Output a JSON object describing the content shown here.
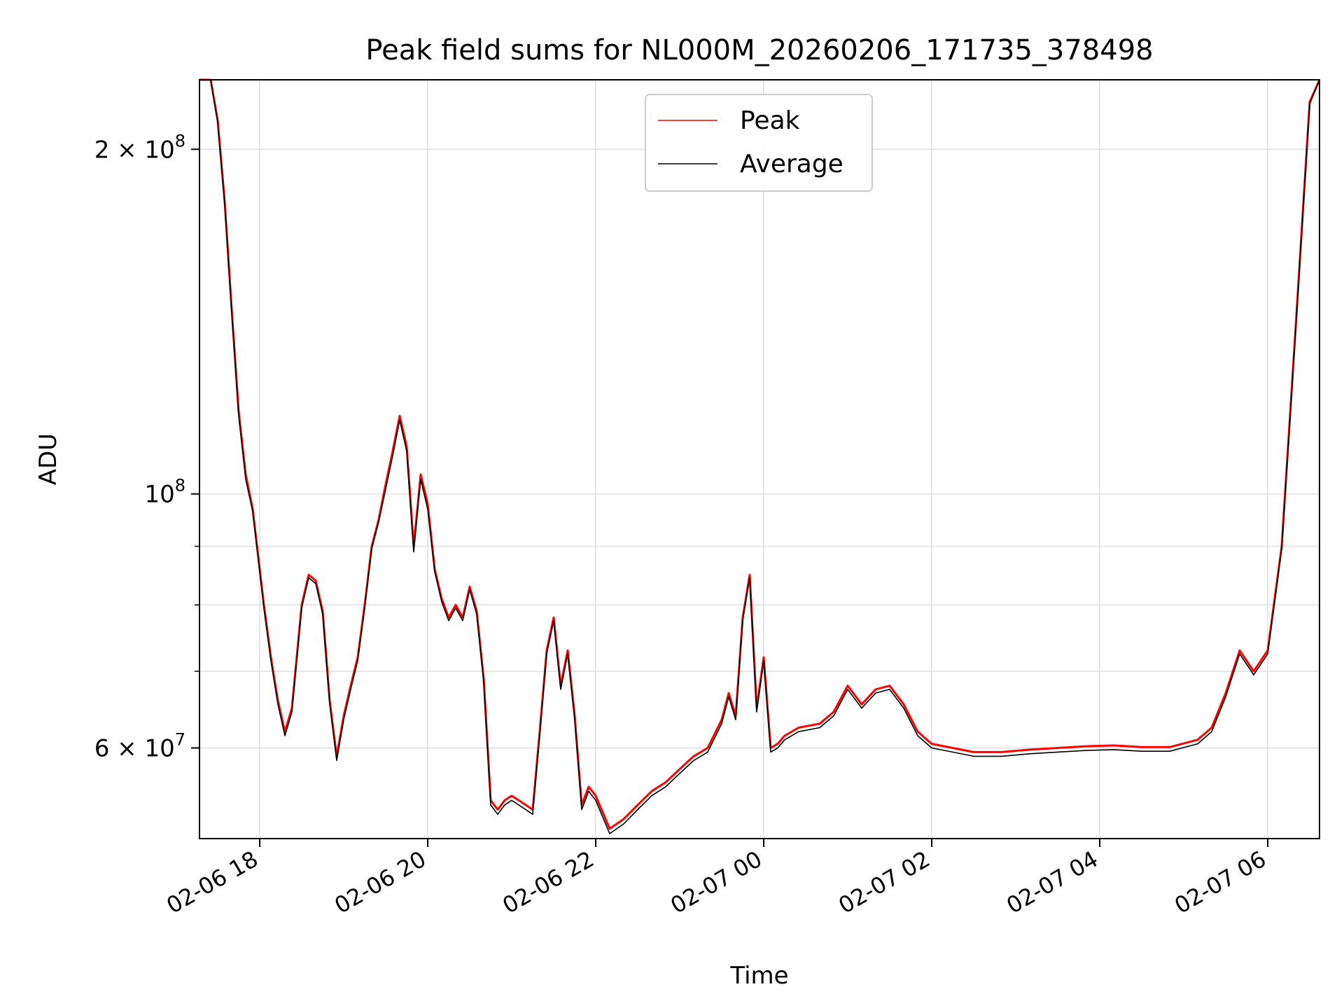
{
  "chart_data": {
    "type": "line",
    "title": "Peak field sums for NL000M_20260206_171735_378498",
    "xlabel": "Time",
    "ylabel": "ADU",
    "y_scale": "log",
    "ylim": [
      50000000,
      230000000
    ],
    "xlim": [
      "2026-02-06 17:17",
      "2026-02-07 06:37"
    ],
    "grid": true,
    "legend_position": "top-center",
    "x_ticks": [
      {
        "t": "2026-02-06 18:00",
        "label": "02-06 18"
      },
      {
        "t": "2026-02-06 20:00",
        "label": "02-06 20"
      },
      {
        "t": "2026-02-06 22:00",
        "label": "02-06 22"
      },
      {
        "t": "2026-02-07 00:00",
        "label": "02-07 00"
      },
      {
        "t": "2026-02-07 02:00",
        "label": "02-07 02"
      },
      {
        "t": "2026-02-07 04:00",
        "label": "02-07 04"
      },
      {
        "t": "2026-02-07 06:00",
        "label": "02-07 06"
      }
    ],
    "y_ticks": [
      {
        "value": 60000000,
        "base": "6 × 10",
        "exp": "7"
      },
      {
        "value": 100000000,
        "base": "10",
        "exp": "8"
      },
      {
        "value": 200000000,
        "base": "2 × 10",
        "exp": "8"
      }
    ],
    "y_minor_ticks": [
      70000000,
      80000000,
      90000000
    ],
    "series": [
      {
        "name": "Peak",
        "color": "#ff0000",
        "x": [
          "2026-02-06 17:17",
          "2026-02-06 17:25",
          "2026-02-06 17:30",
          "2026-02-06 17:35",
          "2026-02-06 17:40",
          "2026-02-06 17:45",
          "2026-02-06 17:50",
          "2026-02-06 17:55",
          "2026-02-06 18:00",
          "2026-02-06 18:03",
          "2026-02-06 18:08",
          "2026-02-06 18:13",
          "2026-02-06 18:18",
          "2026-02-06 18:23",
          "2026-02-06 18:30",
          "2026-02-06 18:35",
          "2026-02-06 18:40",
          "2026-02-06 18:45",
          "2026-02-06 18:50",
          "2026-02-06 18:55",
          "2026-02-06 19:00",
          "2026-02-06 19:05",
          "2026-02-06 19:10",
          "2026-02-06 19:15",
          "2026-02-06 19:20",
          "2026-02-06 19:25",
          "2026-02-06 19:30",
          "2026-02-06 19:35",
          "2026-02-06 19:40",
          "2026-02-06 19:45",
          "2026-02-06 19:50",
          "2026-02-06 19:55",
          "2026-02-06 20:00",
          "2026-02-06 20:05",
          "2026-02-06 20:10",
          "2026-02-06 20:15",
          "2026-02-06 20:20",
          "2026-02-06 20:25",
          "2026-02-06 20:30",
          "2026-02-06 20:35",
          "2026-02-06 20:40",
          "2026-02-06 20:45",
          "2026-02-06 20:50",
          "2026-02-06 20:55",
          "2026-02-06 21:00",
          "2026-02-06 21:05",
          "2026-02-06 21:10",
          "2026-02-06 21:15",
          "2026-02-06 21:20",
          "2026-02-06 21:25",
          "2026-02-06 21:30",
          "2026-02-06 21:35",
          "2026-02-06 21:40",
          "2026-02-06 21:45",
          "2026-02-06 21:50",
          "2026-02-06 21:55",
          "2026-02-06 22:00",
          "2026-02-06 22:10",
          "2026-02-06 22:20",
          "2026-02-06 22:30",
          "2026-02-06 22:40",
          "2026-02-06 22:50",
          "2026-02-06 23:00",
          "2026-02-06 23:10",
          "2026-02-06 23:20",
          "2026-02-06 23:30",
          "2026-02-06 23:35",
          "2026-02-06 23:40",
          "2026-02-06 23:45",
          "2026-02-06 23:50",
          "2026-02-06 23:55",
          "2026-02-07 00:00",
          "2026-02-07 00:05",
          "2026-02-07 00:10",
          "2026-02-07 00:15",
          "2026-02-07 00:25",
          "2026-02-07 00:40",
          "2026-02-07 00:50",
          "2026-02-07 01:00",
          "2026-02-07 01:10",
          "2026-02-07 01:20",
          "2026-02-07 01:30",
          "2026-02-07 01:40",
          "2026-02-07 01:50",
          "2026-02-07 02:00",
          "2026-02-07 02:15",
          "2026-02-07 02:30",
          "2026-02-07 02:50",
          "2026-02-07 03:10",
          "2026-02-07 03:30",
          "2026-02-07 03:50",
          "2026-02-07 04:10",
          "2026-02-07 04:30",
          "2026-02-07 04:50",
          "2026-02-07 05:10",
          "2026-02-07 05:20",
          "2026-02-07 05:30",
          "2026-02-07 05:40",
          "2026-02-07 05:50",
          "2026-02-07 06:00",
          "2026-02-07 06:10",
          "2026-02-07 06:20",
          "2026-02-07 06:30",
          "2026-02-07 06:37"
        ],
        "y": [
          232000000,
          232000000,
          212000000,
          180000000,
          145000000,
          118000000,
          104000000,
          97000000,
          86000000,
          80000000,
          72000000,
          66000000,
          62000000,
          65000000,
          80000000,
          85000000,
          84000000,
          79000000,
          66000000,
          59000000,
          64000000,
          68000000,
          72000000,
          80000000,
          90000000,
          95000000,
          102000000,
          109000000,
          117000000,
          110000000,
          90000000,
          104000000,
          98000000,
          86000000,
          81000000,
          78000000,
          80000000,
          78000000,
          83000000,
          79000000,
          69000000,
          54000000,
          53000000,
          54000000,
          54500000,
          54000000,
          53500000,
          53000000,
          62000000,
          73000000,
          78000000,
          68000000,
          73000000,
          64000000,
          53500000,
          55500000,
          54500000,
          51000000,
          52000000,
          53500000,
          55000000,
          56000000,
          57500000,
          59000000,
          60000000,
          63500000,
          67000000,
          64000000,
          78000000,
          85000000,
          65000000,
          72000000,
          60000000,
          60500000,
          61500000,
          62500000,
          63000000,
          64500000,
          68000000,
          65500000,
          67500000,
          68000000,
          65500000,
          62000000,
          60500000,
          60000000,
          59500000,
          59500000,
          59800000,
          60000000,
          60200000,
          60300000,
          60100000,
          60100000,
          61000000,
          62500000,
          67000000,
          73000000,
          70000000,
          73000000,
          90000000,
          140000000,
          220000000,
          232000000
        ]
      },
      {
        "name": "Average",
        "color": "#000000",
        "x": [
          "2026-02-06 17:17",
          "2026-02-06 17:25",
          "2026-02-06 17:30",
          "2026-02-06 17:35",
          "2026-02-06 17:40",
          "2026-02-06 17:45",
          "2026-02-06 17:50",
          "2026-02-06 17:55",
          "2026-02-06 18:00",
          "2026-02-06 18:03",
          "2026-02-06 18:08",
          "2026-02-06 18:13",
          "2026-02-06 18:18",
          "2026-02-06 18:23",
          "2026-02-06 18:30",
          "2026-02-06 18:35",
          "2026-02-06 18:40",
          "2026-02-06 18:45",
          "2026-02-06 18:50",
          "2026-02-06 18:55",
          "2026-02-06 19:00",
          "2026-02-06 19:05",
          "2026-02-06 19:10",
          "2026-02-06 19:15",
          "2026-02-06 19:20",
          "2026-02-06 19:25",
          "2026-02-06 19:30",
          "2026-02-06 19:35",
          "2026-02-06 19:40",
          "2026-02-06 19:45",
          "2026-02-06 19:50",
          "2026-02-06 19:55",
          "2026-02-06 20:00",
          "2026-02-06 20:05",
          "2026-02-06 20:10",
          "2026-02-06 20:15",
          "2026-02-06 20:20",
          "2026-02-06 20:25",
          "2026-02-06 20:30",
          "2026-02-06 20:35",
          "2026-02-06 20:40",
          "2026-02-06 20:45",
          "2026-02-06 20:50",
          "2026-02-06 20:55",
          "2026-02-06 21:00",
          "2026-02-06 21:05",
          "2026-02-06 21:10",
          "2026-02-06 21:15",
          "2026-02-06 21:20",
          "2026-02-06 21:25",
          "2026-02-06 21:30",
          "2026-02-06 21:35",
          "2026-02-06 21:40",
          "2026-02-06 21:45",
          "2026-02-06 21:50",
          "2026-02-06 21:55",
          "2026-02-06 22:00",
          "2026-02-06 22:10",
          "2026-02-06 22:20",
          "2026-02-06 22:30",
          "2026-02-06 22:40",
          "2026-02-06 22:50",
          "2026-02-06 23:00",
          "2026-02-06 23:10",
          "2026-02-06 23:20",
          "2026-02-06 23:30",
          "2026-02-06 23:35",
          "2026-02-06 23:40",
          "2026-02-06 23:45",
          "2026-02-06 23:50",
          "2026-02-06 23:55",
          "2026-02-07 00:00",
          "2026-02-07 00:05",
          "2026-02-07 00:10",
          "2026-02-07 00:15",
          "2026-02-07 00:25",
          "2026-02-07 00:40",
          "2026-02-07 00:50",
          "2026-02-07 01:00",
          "2026-02-07 01:10",
          "2026-02-07 01:20",
          "2026-02-07 01:30",
          "2026-02-07 01:40",
          "2026-02-07 01:50",
          "2026-02-07 02:00",
          "2026-02-07 02:15",
          "2026-02-07 02:30",
          "2026-02-07 02:50",
          "2026-02-07 03:10",
          "2026-02-07 03:30",
          "2026-02-07 03:50",
          "2026-02-07 04:10",
          "2026-02-07 04:30",
          "2026-02-07 04:50",
          "2026-02-07 05:10",
          "2026-02-07 05:20",
          "2026-02-07 05:30",
          "2026-02-07 05:40",
          "2026-02-07 05:50",
          "2026-02-07 06:00",
          "2026-02-07 06:10",
          "2026-02-07 06:20",
          "2026-02-07 06:30",
          "2026-02-07 06:37"
        ],
        "y": [
          232000000,
          232000000,
          211000000,
          179000000,
          144000000,
          117000000,
          103000000,
          96500000,
          85500000,
          79500000,
          71500000,
          65500000,
          61500000,
          64500000,
          79500000,
          84500000,
          83500000,
          78500000,
          65500000,
          58500000,
          63500000,
          67500000,
          71500000,
          79500000,
          89500000,
          94500000,
          101000000,
          108000000,
          116000000,
          109000000,
          89000000,
          103000000,
          97000000,
          85500000,
          80500000,
          77500000,
          79500000,
          77500000,
          82500000,
          78500000,
          68500000,
          53500000,
          52500000,
          53500000,
          54000000,
          53500000,
          53000000,
          52500000,
          61500000,
          72500000,
          77500000,
          67500000,
          72500000,
          63500000,
          53000000,
          55000000,
          54000000,
          50500000,
          51500000,
          53000000,
          54500000,
          55500000,
          57000000,
          58500000,
          59500000,
          63000000,
          66500000,
          63500000,
          77500000,
          84500000,
          64500000,
          71500000,
          59500000,
          60000000,
          61000000,
          62000000,
          62500000,
          64000000,
          67500000,
          65000000,
          67000000,
          67500000,
          65000000,
          61500000,
          60000000,
          59500000,
          59000000,
          59000000,
          59300000,
          59500000,
          59700000,
          59800000,
          59600000,
          59600000,
          60500000,
          62000000,
          66500000,
          72500000,
          69500000,
          72500000,
          89500000,
          139000000,
          219000000,
          232000000
        ]
      }
    ]
  }
}
